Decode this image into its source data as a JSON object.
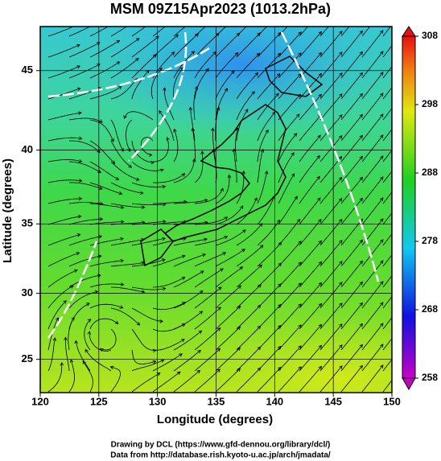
{
  "map": {
    "title": "MSM 09Z15Apr2023 (1013.2hPa)",
    "x_label": "Longitude (degrees)",
    "y_label": "Latitude  (degrees)",
    "xlim": [
      120,
      150
    ],
    "xticks": [
      120,
      125,
      130,
      135,
      140,
      145,
      150
    ],
    "ylim": [
      22.4,
      47.6
    ],
    "yticks": [
      25,
      30,
      35,
      40,
      45
    ],
    "grid": true
  },
  "colorbar": {
    "lim": [
      258,
      308
    ],
    "ticks": [
      258,
      268,
      278,
      288,
      298,
      308
    ]
  },
  "footer": [
    "Drawing by DCL (https://www.gfd-dennou.org/library/dcl/)",
    "Data from http://database.rish.kyoto-u.ac.jp/arch/jmadata/"
  ]
}
